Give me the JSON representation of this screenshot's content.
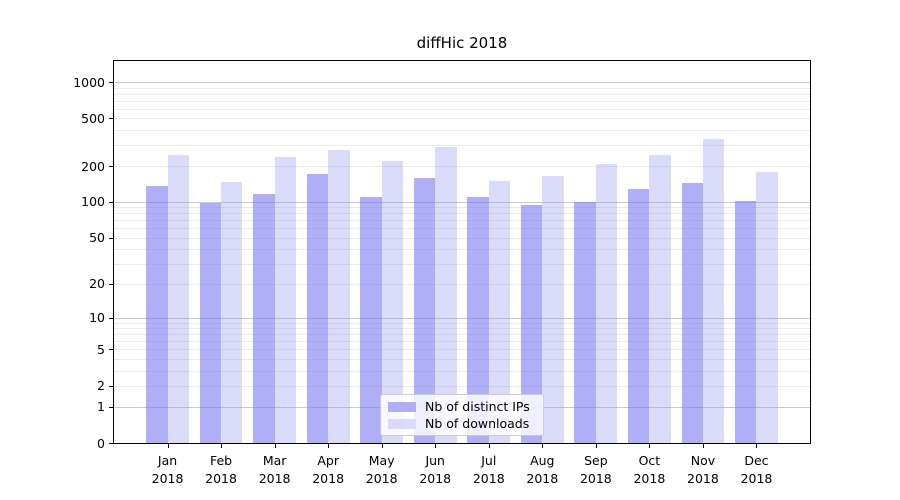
{
  "chart_data": {
    "type": "bar",
    "title": "diffHic 2018",
    "categories": [
      "Jan",
      "Feb",
      "Mar",
      "Apr",
      "May",
      "Jun",
      "Jul",
      "Aug",
      "Sep",
      "Oct",
      "Nov",
      "Dec"
    ],
    "category_year_label": "2018",
    "series": [
      {
        "name": "Nb of distinct IPs",
        "legend_color": "#afaff7",
        "bar_color": "rgba(122,122,242,0.60)",
        "values": [
          137,
          98,
          116,
          172,
          110,
          158,
          110,
          95,
          100,
          129,
          145,
          101
        ]
      },
      {
        "name": "Nb of downloads",
        "legend_color": "#dadaf9",
        "bar_color": "rgba(148,148,238,0.35)",
        "values": [
          245,
          147,
          240,
          271,
          222,
          287,
          150,
          166,
          209,
          247,
          339,
          180
        ]
      }
    ],
    "yscale": "log1p",
    "ylim": [
      0,
      1500
    ],
    "y_tick_labels": [
      "0",
      "1",
      "2",
      "5",
      "10",
      "20",
      "50",
      "100",
      "200",
      "500",
      "1000"
    ],
    "y_ticks": [
      0,
      1,
      2,
      5,
      10,
      20,
      50,
      100,
      200,
      500,
      1000
    ],
    "major_gridlines": [
      1,
      10,
      100,
      1000
    ],
    "minor_gridlines": [
      2,
      3,
      4,
      5,
      6,
      7,
      8,
      9,
      20,
      30,
      40,
      50,
      60,
      70,
      80,
      90,
      200,
      300,
      400,
      500,
      600,
      700,
      800,
      900
    ],
    "grid_major_color": "#c9c9c9",
    "grid_minor_color": "#ebebeb",
    "axis_color": "#000000",
    "legend_position": "lower center"
  }
}
